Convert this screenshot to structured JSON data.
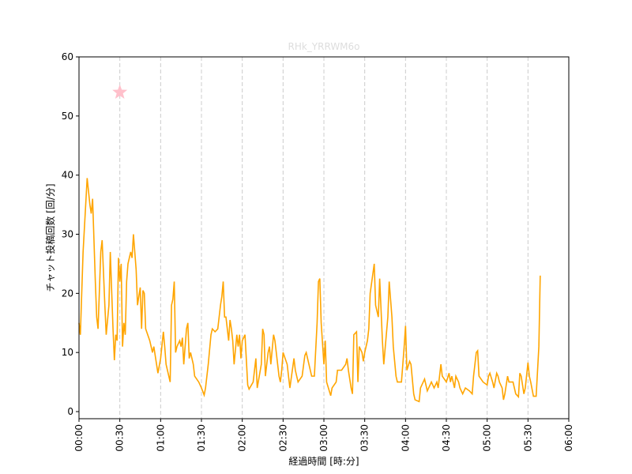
{
  "chart_data": {
    "type": "line",
    "title": "RHk_YRRWM6o",
    "title_color": "#dddddd",
    "xlabel": "経過時間 [時:分]",
    "ylabel": "チャット投稿回数 [回/分]",
    "color": "orange",
    "x": [
      0,
      1,
      3,
      6,
      8,
      9,
      10,
      12,
      13,
      14,
      16,
      17,
      19,
      20,
      22,
      23,
      25,
      26,
      27,
      28,
      29,
      30,
      31,
      32,
      33,
      34,
      35,
      36,
      38,
      39,
      40,
      42,
      43,
      45,
      46,
      47,
      48,
      49,
      52,
      53,
      54,
      55,
      57,
      58,
      60,
      62,
      63,
      64,
      67,
      68,
      69,
      70,
      71,
      72,
      74,
      75,
      76,
      77,
      79,
      80,
      81,
      82,
      84,
      85,
      88,
      90,
      92,
      93,
      95,
      97,
      98,
      100,
      102,
      104,
      105,
      106,
      107,
      108,
      110,
      111,
      112,
      113,
      114,
      116,
      117,
      118,
      119,
      120,
      122,
      124,
      125,
      128,
      130,
      131,
      134,
      135,
      136,
      137,
      139,
      140,
      141,
      143,
      144,
      147,
      148,
      149,
      150,
      153,
      155,
      158,
      159,
      161,
      164,
      166,
      167,
      169,
      171,
      173,
      175,
      176,
      177,
      178,
      180,
      181,
      182,
      185,
      186,
      189,
      190,
      193,
      196,
      197,
      198,
      200,
      201,
      202,
      204,
      205,
      206,
      208,
      209,
      210,
      212,
      213,
      214,
      217,
      218,
      220,
      221,
      223,
      224,
      227,
      228,
      230,
      231,
      233,
      234,
      237,
      239,
      240,
      241,
      243,
      244,
      246,
      247,
      250,
      251,
      253,
      254,
      256,
      259,
      261,
      263,
      264,
      266,
      267,
      270,
      272,
      273,
      274,
      276,
      277,
      279,
      280,
      282,
      284,
      287,
      289,
      290,
      292,
      293,
      294,
      297,
      300,
      301,
      302,
      304,
      305,
      307,
      308,
      309,
      311,
      312,
      313,
      315,
      316,
      319,
      321,
      323,
      324,
      325,
      327,
      328,
      330,
      331,
      332,
      334,
      336,
      338,
      339
    ],
    "values": [
      15,
      13,
      27,
      39.5,
      35,
      33.5,
      36,
      22,
      16,
      14,
      27,
      29,
      18,
      13,
      18,
      27,
      14,
      8.7,
      13,
      12,
      26,
      22,
      25,
      11,
      15,
      13,
      22,
      25,
      27,
      26,
      30,
      24,
      18,
      21,
      14,
      20.5,
      20,
      14,
      12,
      11,
      10,
      11,
      8,
      6.5,
      9,
      13.5,
      11,
      8,
      5,
      18,
      19,
      22,
      10,
      11,
      12,
      11,
      12.5,
      8,
      14,
      15,
      9,
      10,
      8,
      6,
      5,
      4,
      2.8,
      4,
      8,
      13,
      14,
      13.5,
      14,
      18,
      19.5,
      22,
      16,
      16,
      12,
      15.5,
      14,
      12,
      8,
      13,
      11,
      13,
      9,
      12,
      13,
      4.5,
      3.8,
      5,
      9,
      4,
      8,
      14,
      13,
      6,
      10,
      11,
      8,
      13,
      12,
      6,
      5,
      7,
      10,
      8,
      4,
      9,
      7,
      5,
      6,
      9.5,
      10,
      8,
      6,
      6,
      15,
      22,
      22.5,
      15,
      8,
      12,
      5,
      2.7,
      4,
      5,
      7,
      7,
      8,
      9,
      7,
      4,
      3,
      13,
      13.5,
      5,
      11,
      10,
      8.5,
      10,
      12,
      14,
      20,
      25,
      18,
      16,
      22.5,
      12,
      8,
      16,
      22,
      16,
      11,
      6,
      5,
      5,
      11,
      14.5,
      7,
      8.5,
      8,
      3,
      2,
      1.7,
      4,
      5,
      5.5,
      3.5,
      5,
      4,
      5,
      4,
      8,
      6,
      5,
      6.5,
      5,
      6,
      4,
      6,
      5,
      4,
      3,
      4,
      3.5,
      3,
      6,
      10,
      10.3,
      6,
      5,
      4.5,
      6,
      6.5,
      5,
      4,
      6.5,
      6,
      5,
      4,
      2,
      3,
      6,
      5,
      5,
      3,
      2.5,
      6.5,
      6,
      3,
      4,
      8.3,
      6,
      5,
      2.6,
      2.6,
      11,
      23
    ],
    "xlim": [
      0,
      360
    ],
    "xticks": [
      {
        "value": 0,
        "label": "00:00"
      },
      {
        "value": 30,
        "label": "00:30"
      },
      {
        "value": 60,
        "label": "01:00"
      },
      {
        "value": 90,
        "label": "01:30"
      },
      {
        "value": 120,
        "label": "02:00"
      },
      {
        "value": 150,
        "label": "02:30"
      },
      {
        "value": 180,
        "label": "03:00"
      },
      {
        "value": 210,
        "label": "03:30"
      },
      {
        "value": 240,
        "label": "04:00"
      },
      {
        "value": 270,
        "label": "04:30"
      },
      {
        "value": 300,
        "label": "05:00"
      },
      {
        "value": 330,
        "label": "05:30"
      },
      {
        "value": 360,
        "label": "06:00"
      }
    ],
    "ylim": [
      -1.2,
      60
    ],
    "yticks": [
      0,
      10,
      20,
      30,
      40,
      50,
      60
    ],
    "grid": "x",
    "marker": {
      "x": 30,
      "y": 54,
      "shape": "star",
      "color": "pink"
    }
  }
}
